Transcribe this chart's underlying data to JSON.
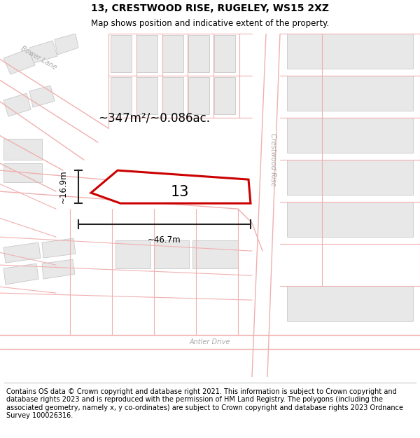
{
  "title": "13, CRESTWOOD RISE, RUGELEY, WS15 2XZ",
  "subtitle": "Map shows position and indicative extent of the property.",
  "footer": "Contains OS data © Crown copyright and database right 2021. This information is subject to Crown copyright and database rights 2023 and is reproduced with the permission of HM Land Registry. The polygons (including the associated geometry, namely x, y co-ordinates) are subject to Crown copyright and database rights 2023 Ordnance Survey 100026316.",
  "background_color": "#ffffff",
  "title_fontsize": 10,
  "subtitle_fontsize": 8.5,
  "footer_fontsize": 7,
  "area_label": "~347m²/~0.086ac.",
  "width_label": "~46.7m",
  "height_label": "~16.9m",
  "plot_number": "13",
  "road_label_crestwood": "Crestwood Rise",
  "road_label_bower": "Bower Lane",
  "road_label_antler": "Antler Drive",
  "plot_color": "#cc0000",
  "building_fill": "#e8e8e8",
  "building_edge": "#c8c8c8",
  "road_line_color": "#f0b0b0",
  "dim_color": "#222222",
  "road_label_color": "#aaaaaa"
}
